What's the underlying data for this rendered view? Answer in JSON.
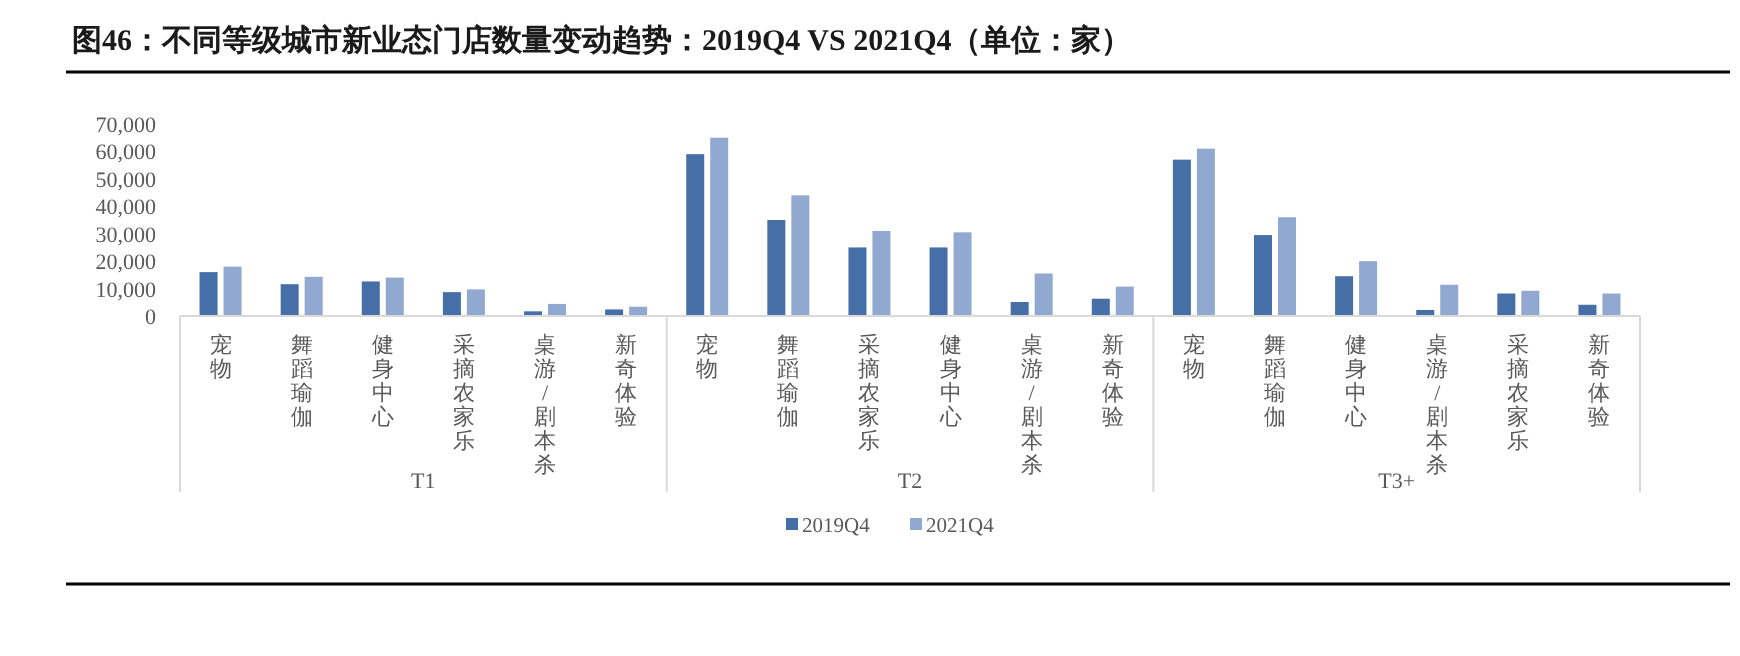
{
  "chart_data": {
    "type": "bar",
    "title": "图46：不同等级城市新业态门店数量变动趋势：2019Q4 VS 2021Q4（单位：家）",
    "categories": [
      "宠物",
      "舞蹈瑜伽",
      "健身中心",
      "采摘农家乐",
      "桌游/剧本杀",
      "新奇体验",
      "宠物",
      "舞蹈瑜伽",
      "采摘农家乐",
      "健身中心",
      "桌游/剧本杀",
      "新奇体验",
      "宠物",
      "舞蹈瑜伽",
      "健身中心",
      "桌游/剧本杀",
      "采摘农家乐",
      "新奇体验"
    ],
    "annotations": [
      "T1",
      "T2",
      "T3+"
    ],
    "series": [
      {
        "name": "2019Q4",
        "color": "#456fa6",
        "values": [
          16000,
          11600,
          12600,
          8700,
          1700,
          2400,
          59000,
          35000,
          25000,
          25000,
          5100,
          6300,
          57000,
          29500,
          14500,
          2200,
          8200,
          4100
        ]
      },
      {
        "name": "2021Q4",
        "color": "#91a9d1",
        "values": [
          18000,
          14300,
          14000,
          9700,
          4400,
          3400,
          65000,
          44000,
          31000,
          30500,
          15500,
          10700,
          61000,
          36000,
          20000,
          11400,
          9200,
          8200
        ]
      }
    ],
    "ylim": [
      0,
      70000
    ],
    "yticks": [
      {
        "value": 0,
        "label": "0"
      },
      {
        "value": 10000,
        "label": "10,000"
      },
      {
        "value": 20000,
        "label": "20,000"
      },
      {
        "value": 30000,
        "label": "30,000"
      },
      {
        "value": 40000,
        "label": "40,000"
      },
      {
        "value": 50000,
        "label": "50,000"
      },
      {
        "value": 60000,
        "label": "60,000"
      },
      {
        "value": 70000,
        "label": "70,000"
      }
    ],
    "grid": false,
    "legend": "bottom"
  }
}
